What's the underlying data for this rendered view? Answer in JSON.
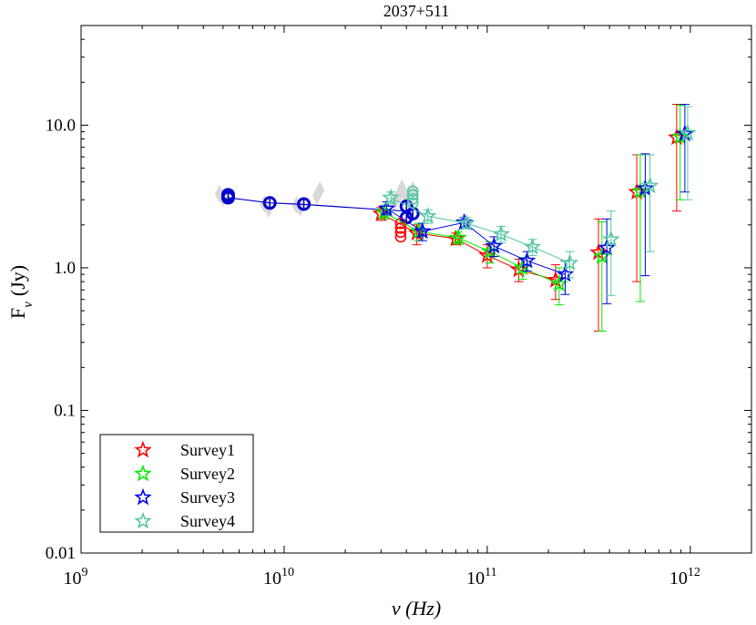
{
  "chart_data": {
    "type": "scatter",
    "title": "2037+511",
    "xlabel": "ν (Hz)",
    "ylabel_main": "F",
    "ylabel_sub": "ν",
    "ylabel_unit": "(Jy)",
    "x_scale": "log",
    "y_scale": "log",
    "xlim": [
      1000000000.0,
      2000000000000.0
    ],
    "ylim": [
      0.01,
      50
    ],
    "x_ticks": [
      {
        "value": 1000000000.0,
        "base": "10",
        "exp": "9"
      },
      {
        "value": 10000000000.0,
        "base": "10",
        "exp": "10"
      },
      {
        "value": 100000000000.0,
        "base": "10",
        "exp": "11"
      },
      {
        "value": 1000000000000.0,
        "base": "10",
        "exp": "12"
      }
    ],
    "y_ticks": [
      {
        "value": 0.01,
        "label": "0.01"
      },
      {
        "value": 0.1,
        "label": "0.1"
      },
      {
        "value": 1,
        "label": "1.0"
      },
      {
        "value": 10,
        "label": "10.0"
      }
    ],
    "legend_position": "bottom-left",
    "grid": false,
    "series": [
      {
        "name": "Survey1",
        "color": "#ff0000",
        "marker": "star",
        "points": [
          {
            "x": 30000000000.0,
            "y": 2.4,
            "lo": 2.15,
            "hi": 2.65
          },
          {
            "x": 45000000000.0,
            "y": 1.75,
            "lo": 1.45,
            "hi": 2.0
          },
          {
            "x": 70000000000.0,
            "y": 1.6,
            "lo": 1.45,
            "hi": 1.75
          },
          {
            "x": 100000000000.0,
            "y": 1.22,
            "lo": 1.0,
            "hi": 1.45
          },
          {
            "x": 143000000000.0,
            "y": 0.97,
            "lo": 0.8,
            "hi": 1.15
          },
          {
            "x": 217000000000.0,
            "y": 0.82,
            "lo": 0.6,
            "hi": 1.05
          },
          {
            "x": 353000000000.0,
            "y": 1.28,
            "lo": 0.36,
            "hi": 2.2
          },
          {
            "x": 545000000000.0,
            "y": 3.4,
            "lo": 0.8,
            "hi": 6.2
          },
          {
            "x": 857000000000.0,
            "y": 8.2,
            "lo": 2.5,
            "hi": 14.0
          }
        ]
      },
      {
        "name": "Survey2",
        "color": "#00ee00",
        "marker": "star",
        "points": [
          {
            "x": 31000000000.0,
            "y": 2.45,
            "lo": 2.2,
            "hi": 2.7
          },
          {
            "x": 46000000000.0,
            "y": 1.8,
            "lo": 1.55,
            "hi": 2.05
          },
          {
            "x": 72000000000.0,
            "y": 1.62,
            "lo": 1.47,
            "hi": 1.78
          },
          {
            "x": 103000000000.0,
            "y": 1.3,
            "lo": 1.08,
            "hi": 1.52
          },
          {
            "x": 149000000000.0,
            "y": 1.0,
            "lo": 0.83,
            "hi": 1.18
          },
          {
            "x": 226000000000.0,
            "y": 0.77,
            "lo": 0.55,
            "hi": 1.0
          },
          {
            "x": 367000000000.0,
            "y": 1.2,
            "lo": 0.36,
            "hi": 2.1
          },
          {
            "x": 567000000000.0,
            "y": 3.45,
            "lo": 0.58,
            "hi": 6.2
          },
          {
            "x": 891000000000.0,
            "y": 8.3,
            "lo": 3.0,
            "hi": 13.8
          }
        ]
      },
      {
        "name": "Survey3",
        "color": "#0000ee",
        "marker": "star",
        "points": [
          {
            "x": 32000000000.0,
            "y": 2.6,
            "lo": 2.35,
            "hi": 2.9
          },
          {
            "x": 48000000000.0,
            "y": 1.8,
            "lo": 1.55,
            "hi": 2.05
          },
          {
            "x": 77000000000.0,
            "y": 2.08,
            "lo": 1.9,
            "hi": 2.25
          },
          {
            "x": 108000000000.0,
            "y": 1.42,
            "lo": 1.2,
            "hi": 1.65
          },
          {
            "x": 157000000000.0,
            "y": 1.12,
            "lo": 0.95,
            "hi": 1.3
          },
          {
            "x": 242000000000.0,
            "y": 0.9,
            "lo": 0.65,
            "hi": 1.12
          },
          {
            "x": 388000000000.0,
            "y": 1.38,
            "lo": 0.56,
            "hi": 2.2
          },
          {
            "x": 600000000000.0,
            "y": 3.6,
            "lo": 0.88,
            "hi": 6.3
          },
          {
            "x": 940000000000.0,
            "y": 8.7,
            "lo": 3.4,
            "hi": 14.0
          }
        ]
      },
      {
        "name": "Survey4",
        "color": "#55c7a3",
        "marker": "star",
        "points": [
          {
            "x": 33500000000.0,
            "y": 3.1,
            "lo": 2.8,
            "hi": 3.4
          },
          {
            "x": 51000000000.0,
            "y": 2.3,
            "lo": 2.05,
            "hi": 2.55
          },
          {
            "x": 79000000000.0,
            "y": 2.05,
            "lo": 1.88,
            "hi": 2.25
          },
          {
            "x": 117000000000.0,
            "y": 1.72,
            "lo": 1.5,
            "hi": 1.95
          },
          {
            "x": 167000000000.0,
            "y": 1.4,
            "lo": 1.22,
            "hi": 1.58
          },
          {
            "x": 255000000000.0,
            "y": 1.08,
            "lo": 0.85,
            "hi": 1.3
          },
          {
            "x": 407000000000.0,
            "y": 1.58,
            "lo": 0.64,
            "hi": 2.5
          },
          {
            "x": 633000000000.0,
            "y": 3.75,
            "lo": 1.3,
            "hi": 6.2
          },
          {
            "x": 970000000000.0,
            "y": 8.8,
            "lo": 3.0,
            "hi": 13.5
          }
        ]
      }
    ],
    "archival_gray": {
      "color": "#d8d8d8",
      "marker": "diamond",
      "points": [
        {
          "x": 4800000000.0,
          "y": 3.3
        },
        {
          "x": 5000000000.0,
          "y": 3.1
        },
        {
          "x": 8000000000.0,
          "y": 2.8
        },
        {
          "x": 8400000000.0,
          "y": 2.6
        },
        {
          "x": 11500000000.0,
          "y": 2.75
        },
        {
          "x": 12000000000.0,
          "y": 2.65
        },
        {
          "x": 15000000000.0,
          "y": 3.5
        },
        {
          "x": 14500000000.0,
          "y": 3.2
        },
        {
          "x": 37000000000.0,
          "y": 3.3
        },
        {
          "x": 38000000000.0,
          "y": 3.6
        },
        {
          "x": 40000000000.0,
          "y": 3.1
        },
        {
          "x": 43000000000.0,
          "y": 3.5
        },
        {
          "x": 35000000000.0,
          "y": 2.9
        }
      ]
    },
    "blue_reference": {
      "color": "#0000cc",
      "marker": "circle",
      "line": [
        {
          "x": 5300000000.0,
          "y": 3.1
        },
        {
          "x": 8500000000.0,
          "y": 2.85
        },
        {
          "x": 12500000000.0,
          "y": 2.78
        },
        {
          "x": 39000000000.0,
          "y": 2.5
        }
      ],
      "points": [
        {
          "x": 5300000000.0,
          "y": 3.25
        },
        {
          "x": 5300000000.0,
          "y": 3.1
        },
        {
          "x": 8500000000.0,
          "y": 2.85
        },
        {
          "x": 12500000000.0,
          "y": 2.8
        },
        {
          "x": 40000000000.0,
          "y": 2.7
        },
        {
          "x": 40000000000.0,
          "y": 2.25
        },
        {
          "x": 43000000000.0,
          "y": 2.4
        }
      ]
    },
    "red_circles": {
      "color": "#ff0000",
      "marker": "circle",
      "points": [
        {
          "x": 37500000000.0,
          "y": 1.65
        },
        {
          "x": 37500000000.0,
          "y": 1.78
        },
        {
          "x": 37500000000.0,
          "y": 1.9
        },
        {
          "x": 37500000000.0,
          "y": 2.05
        }
      ]
    },
    "teal_circles": {
      "color": "#55c7a3",
      "marker": "circle",
      "points": [
        {
          "x": 43000000000.0,
          "y": 2.85
        },
        {
          "x": 43000000000.0,
          "y": 3.05
        },
        {
          "x": 43000000000.0,
          "y": 3.25
        },
        {
          "x": 43000000000.0,
          "y": 3.45
        }
      ]
    }
  }
}
